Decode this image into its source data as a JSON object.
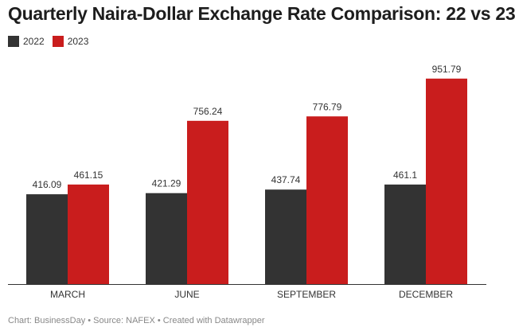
{
  "chart_data": {
    "type": "bar",
    "title": "Quarterly Naira-Dollar Exchange Rate Comparison: 22 vs 23",
    "categories": [
      "MARCH",
      "JUNE",
      "SEPTEMBER",
      "DECEMBER"
    ],
    "series": [
      {
        "name": "2022",
        "color": "#333333",
        "values": [
          416.09,
          421.29,
          437.74,
          461.1
        ],
        "labels": [
          "416.09",
          "421.29",
          "437.74",
          "461.1"
        ]
      },
      {
        "name": "2023",
        "color": "#c91d1d",
        "values": [
          461.15,
          756.24,
          776.79,
          951.79
        ],
        "labels": [
          "461.15",
          "756.24",
          "776.79",
          "951.79"
        ]
      }
    ],
    "xlabel": "",
    "ylabel": "",
    "ylim": [
      0,
      1000
    ],
    "grid": false,
    "legend_position": "top-left"
  },
  "footer": "Chart: BusinessDay • Source: NAFEX • Created with Datawrapper"
}
